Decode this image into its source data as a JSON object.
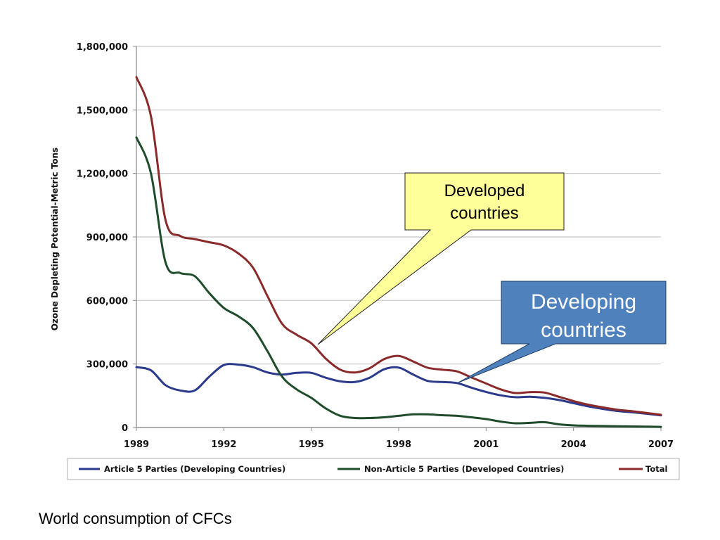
{
  "caption": "World consumption of CFCs",
  "callouts": {
    "developed": {
      "lines": [
        "Developed",
        "countries"
      ],
      "fill": "#ffff99",
      "stroke": "#222222",
      "text_color": "#000000"
    },
    "developing": {
      "lines": [
        "Developing",
        "countries"
      ],
      "fill": "#4f81bd",
      "stroke": "#1f3f66",
      "text_color": "#ffffff"
    }
  },
  "chart_data": {
    "type": "line",
    "title": "",
    "xlabel": "",
    "ylabel": "Ozone Depleting Potential-Metric Tons",
    "xlim": [
      1989,
      2007
    ],
    "ylim": [
      0,
      1800000
    ],
    "x_ticks": [
      1989,
      1992,
      1995,
      1998,
      2001,
      2004,
      2007
    ],
    "x_tick_labels": [
      "1989",
      "1992",
      "1995",
      "1998",
      "2001",
      "2004",
      "2007"
    ],
    "y_ticks": [
      0,
      300000,
      600000,
      900000,
      1200000,
      1500000,
      1800000
    ],
    "y_tick_labels": [
      "0",
      "300,000",
      "600,000",
      "900,000",
      "1,200,000",
      "1,500,000",
      "1,800,000"
    ],
    "grid": true,
    "legend_position": "bottom",
    "x": [
      1989,
      1989.5,
      1990,
      1990.5,
      1991,
      1991.5,
      1992,
      1992.5,
      1993,
      1993.5,
      1994,
      1994.5,
      1995,
      1995.5,
      1996,
      1996.5,
      1997,
      1997.5,
      1998,
      1998.5,
      1999,
      1999.5,
      2000,
      2000.5,
      2001,
      2001.5,
      2002,
      2002.5,
      2003,
      2003.5,
      2004,
      2004.5,
      2005,
      2005.5,
      2006,
      2006.5,
      2007
    ],
    "series": [
      {
        "name": "Article 5 Parties (Developing Countries)",
        "color": "#2b3a8c",
        "values": [
          285000,
          270000,
          200000,
          175000,
          175000,
          240000,
          295000,
          297000,
          285000,
          260000,
          250000,
          258000,
          258000,
          235000,
          218000,
          215000,
          235000,
          275000,
          283000,
          250000,
          220000,
          215000,
          210000,
          188000,
          168000,
          152000,
          143000,
          145000,
          140000,
          130000,
          115000,
          100000,
          88000,
          78000,
          72000,
          65000,
          57000
        ]
      },
      {
        "name": "Non-Article 5 Parties (Developed Countries)",
        "color": "#1f4d2b",
        "values": [
          1370000,
          1200000,
          780000,
          730000,
          715000,
          635000,
          565000,
          525000,
          470000,
          360000,
          240000,
          180000,
          140000,
          90000,
          55000,
          45000,
          45000,
          48000,
          55000,
          62000,
          62000,
          58000,
          55000,
          48000,
          40000,
          28000,
          20000,
          22000,
          25000,
          15000,
          10000,
          8000,
          7000,
          6000,
          5000,
          4000,
          3000
        ]
      },
      {
        "name": "Total",
        "color": "#8b2a2a",
        "values": [
          1655000,
          1470000,
          980000,
          905000,
          890000,
          875000,
          860000,
          822000,
          755000,
          620000,
          490000,
          438000,
          398000,
          325000,
          273000,
          260000,
          280000,
          323000,
          338000,
          312000,
          282000,
          273000,
          265000,
          236000,
          208000,
          180000,
          163000,
          167000,
          165000,
          145000,
          125000,
          108000,
          95000,
          84000,
          77000,
          69000,
          60000
        ]
      }
    ]
  }
}
